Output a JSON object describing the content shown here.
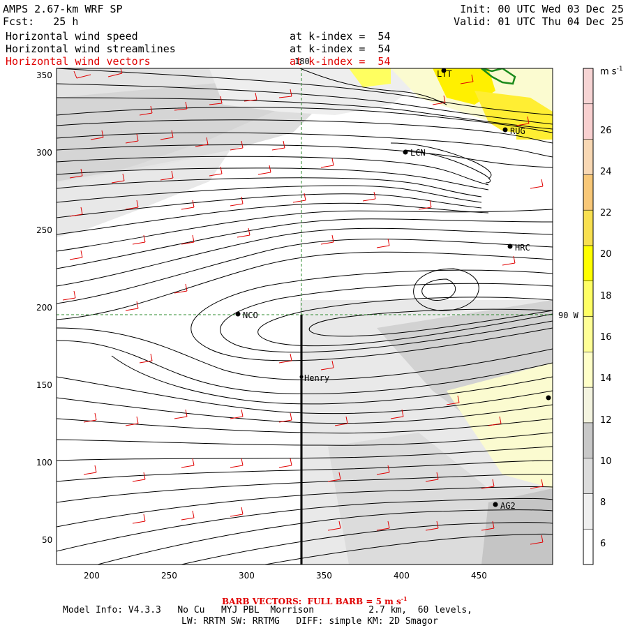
{
  "header": {
    "model": "AMPS 2.67-km WRF SP",
    "forecast": "Fcst:   25 h",
    "init": "Init: 00 UTC Wed 03 Dec 25",
    "valid": "Valid: 01 UTC Thu 04 Dec 25",
    "fields": [
      {
        "name": "Horizontal wind speed",
        "level": "at k-index =  54",
        "color": "#000000"
      },
      {
        "name": "Horizontal wind streamlines",
        "level": "at k-index =  54",
        "color": "#000000"
      },
      {
        "name": "Horizontal wind vectors",
        "level": "at k-index =  54",
        "color": "#e00000"
      }
    ]
  },
  "map": {
    "x_ticks": [
      "200",
      "250",
      "300",
      "350",
      "400",
      "450"
    ],
    "y_ticks": [
      "50",
      "100",
      "150",
      "200",
      "250",
      "300",
      "350"
    ],
    "meridian_label": "180",
    "parallel_label": "90 W",
    "stations": [
      {
        "name": "NCO"
      },
      {
        "name": "Henry"
      },
      {
        "name": "LCN"
      },
      {
        "name": "RUG"
      },
      {
        "name": "HRC"
      },
      {
        "name": "AG2"
      },
      {
        "name": "LTT"
      }
    ],
    "colors": {
      "grid": "#2e8b2e",
      "barbs": "#e00000",
      "streamlines": "#000000",
      "shading_light": "#e6e6e6",
      "shading_mid": "#cfcfcf",
      "shading_yellow": "#fff000"
    }
  },
  "colorbar": {
    "unit": "m s",
    "unit_sup": "-1",
    "labels": [
      "6",
      "8",
      "10",
      "12",
      "14",
      "16",
      "18",
      "20",
      "22",
      "24",
      "26"
    ],
    "colors": [
      "#ffffff",
      "#efefef",
      "#dcdcdc",
      "#c8c8c8",
      "#f4f4e0",
      "#ffffc8",
      "#ffff96",
      "#ffff64",
      "#ffff00",
      "#f8e050",
      "#f8c878",
      "#f8d8b4",
      "#f8d0d0",
      "#f6d4d4"
    ]
  },
  "footer": {
    "barb_note": "BARB VECTORS:  FULL BARB = 5 m s",
    "barb_sup": "-1",
    "model_info": "Model Info: V4.3.3   No Cu   MYJ PBL  Morrison          2.7 km,  60 levels,",
    "physics": "LW: RRTM SW: RRTMG   DIFF: simple KM: 2D Smagor"
  }
}
